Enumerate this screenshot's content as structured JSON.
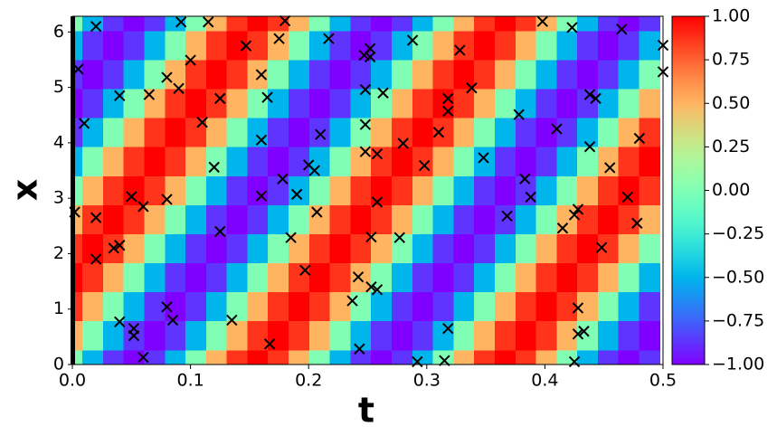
{
  "chart_data": {
    "type": "heatmap",
    "xlabel": "t",
    "ylabel": "x",
    "t": [
      0,
      0.0175,
      0.0349,
      0.0524,
      0.0698,
      0.0873,
      0.1047,
      0.1222,
      0.1396,
      0.1571,
      0.1745,
      0.192,
      0.2094,
      0.2269,
      0.2443,
      0.2618,
      0.2793,
      0.2967,
      0.3142,
      0.3316,
      0.3491,
      0.3665,
      0.384,
      0.4014,
      0.4189,
      0.4363,
      0.4538,
      0.4712,
      0.4887
    ],
    "x": [
      0,
      0.5236,
      1.0472,
      1.5708,
      2.0944,
      2.618,
      3.1416,
      3.6652,
      4.1888,
      4.7124,
      5.236,
      5.7596,
      6.2832
    ],
    "values": [
      [
        0,
        -0.5,
        -0.87,
        -1,
        -0.87,
        -0.5,
        0,
        0.5,
        0.87,
        1,
        0.87,
        0.5,
        0,
        -0.5,
        -0.87,
        -1,
        -0.87,
        -0.5,
        0,
        0.5,
        0.87,
        1,
        0.87,
        0.5,
        0,
        -0.5,
        -0.87,
        -1,
        -0.87
      ],
      [
        0.5,
        0,
        -0.5,
        -0.87,
        -1,
        -0.87,
        -0.5,
        0,
        0.5,
        0.87,
        1,
        0.87,
        0.5,
        0,
        -0.5,
        -0.87,
        -1,
        -0.87,
        -0.5,
        0,
        0.5,
        0.87,
        1,
        0.87,
        0.5,
        0,
        -0.5,
        -0.87,
        -1
      ],
      [
        0.87,
        0.5,
        0,
        -0.5,
        -0.87,
        -1,
        -0.87,
        -0.5,
        0,
        0.5,
        0.87,
        1,
        0.87,
        0.5,
        0,
        -0.5,
        -0.87,
        -1,
        -0.87,
        -0.5,
        0,
        0.5,
        0.87,
        1,
        0.87,
        0.5,
        0,
        -0.5,
        -0.87
      ],
      [
        1,
        0.87,
        0.5,
        0,
        -0.5,
        -0.87,
        -1,
        -0.87,
        -0.5,
        0,
        0.5,
        0.87,
        1,
        0.87,
        0.5,
        0,
        -0.5,
        -0.87,
        -1,
        -0.87,
        -0.5,
        0,
        0.5,
        0.87,
        1,
        0.87,
        0.5,
        0,
        -0.5
      ],
      [
        0.87,
        1,
        0.87,
        0.5,
        0,
        -0.5,
        -0.87,
        -1,
        -0.87,
        -0.5,
        0,
        0.5,
        0.87,
        1,
        0.87,
        0.5,
        0,
        -0.5,
        -0.87,
        -1,
        -0.87,
        -0.5,
        0,
        0.5,
        0.87,
        1,
        0.87,
        0.5,
        0
      ],
      [
        0.5,
        0.87,
        1,
        0.87,
        0.5,
        0,
        -0.5,
        -0.87,
        -1,
        -0.87,
        -0.5,
        0,
        0.5,
        0.87,
        1,
        0.87,
        0.5,
        0,
        -0.5,
        -0.87,
        -1,
        -0.87,
        -0.5,
        0,
        0.5,
        0.87,
        1,
        0.87,
        0.5
      ],
      [
        0,
        0.5,
        0.87,
        1,
        0.87,
        0.5,
        0,
        -0.5,
        -0.87,
        -1,
        -0.87,
        -0.5,
        0,
        0.5,
        0.87,
        1,
        0.87,
        0.5,
        0,
        -0.5,
        -0.87,
        -1,
        -0.87,
        -0.5,
        0,
        0.5,
        0.87,
        1,
        0.87
      ],
      [
        -0.5,
        0,
        0.5,
        0.87,
        1,
        0.87,
        0.5,
        0,
        -0.5,
        -0.87,
        -1,
        -0.87,
        -0.5,
        0,
        0.5,
        0.87,
        1,
        0.87,
        0.5,
        0,
        -0.5,
        -0.87,
        -1,
        -0.87,
        -0.5,
        0,
        0.5,
        0.87,
        1
      ],
      [
        -0.87,
        -0.5,
        0,
        0.5,
        0.87,
        1,
        0.87,
        0.5,
        0,
        -0.5,
        -0.87,
        -1,
        -0.87,
        -0.5,
        0,
        0.5,
        0.87,
        1,
        0.87,
        0.5,
        0,
        -0.5,
        -0.87,
        -1,
        -0.87,
        -0.5,
        0,
        0.5,
        0.87
      ],
      [
        -1,
        -0.87,
        -0.5,
        0,
        0.5,
        0.87,
        1,
        0.87,
        0.5,
        0,
        -0.5,
        -0.87,
        -1,
        -0.87,
        -0.5,
        0,
        0.5,
        0.87,
        1,
        0.87,
        0.5,
        0,
        -0.5,
        -0.87,
        -1,
        -0.87,
        -0.5,
        0,
        0.5
      ],
      [
        -0.87,
        -1,
        -0.87,
        -0.5,
        0,
        0.5,
        0.87,
        1,
        0.87,
        0.5,
        0,
        -0.5,
        -0.87,
        -1,
        -0.87,
        -0.5,
        0,
        0.5,
        0.87,
        1,
        0.87,
        0.5,
        0,
        -0.5,
        -0.87,
        -1,
        -0.87,
        -0.5,
        0
      ],
      [
        -0.5,
        -0.87,
        -1,
        -0.87,
        -0.5,
        0,
        0.5,
        0.87,
        1,
        0.87,
        0.5,
        0,
        -0.5,
        -0.87,
        -1,
        -0.87,
        -0.5,
        0,
        0.5,
        0.87,
        1,
        0.87,
        0.5,
        0,
        -0.5,
        -0.87,
        -1,
        -0.87,
        -0.5
      ],
      [
        0,
        -0.5,
        -0.87,
        -1,
        -0.87,
        -0.5,
        0,
        0.5,
        0.87,
        1,
        0.87,
        0.5,
        0,
        -0.5,
        -0.87,
        -1,
        -0.87,
        -0.5,
        0,
        0.5,
        0.87,
        1,
        0.87,
        0.5,
        0,
        -0.5,
        -0.87,
        -1,
        -0.87
      ]
    ],
    "colormap": "rainbow",
    "clim": [
      -1,
      1
    ],
    "cticks": [
      {
        "value": -1,
        "label": "−1.00"
      },
      {
        "value": -0.75,
        "label": "−0.75"
      },
      {
        "value": -0.5,
        "label": "−0.50"
      },
      {
        "value": -0.25,
        "label": "−0.25"
      },
      {
        "value": 0,
        "label": "0.00"
      },
      {
        "value": 0.25,
        "label": "0.25"
      },
      {
        "value": 0.5,
        "label": "0.50"
      },
      {
        "value": 0.75,
        "label": "0.75"
      },
      {
        "value": 1,
        "label": "1.00"
      }
    ],
    "xlim": [
      0,
      0.5
    ],
    "xticks": [
      {
        "value": 0,
        "label": "0.0"
      },
      0.1,
      0.2,
      0.3,
      0.4,
      0.5
    ],
    "ylim": [
      0,
      6.2832
    ],
    "yticks": [
      0,
      1,
      2,
      3,
      4,
      5,
      6
    ],
    "points": {
      "marker": "x",
      "color": "#000000",
      "t": [
        0.005,
        0.01,
        0.02,
        0.02,
        0.02,
        0.002,
        0.035,
        0.04,
        0.04,
        0.04,
        0.05,
        0.052,
        0.052,
        0.06,
        0.06,
        0.065,
        0.08,
        0.08,
        0.08,
        0.085,
        0.09,
        0.092,
        0.1,
        0.11,
        0.115,
        0.12,
        0.125,
        0.125,
        0.135,
        0.147,
        0.16,
        0.16,
        0.16,
        0.165,
        0.167,
        0.175,
        0.178,
        0.18,
        0.185,
        0.19,
        0.197,
        0.2,
        0.205,
        0.207,
        0.21,
        0.217,
        0.237,
        0.242,
        0.243,
        0.247,
        0.248,
        0.248,
        0.248,
        0.252,
        0.252,
        0.253,
        0.253,
        0.258,
        0.258,
        0.258,
        0.263,
        0.28,
        0.277,
        0.288,
        0.292,
        0.298,
        0.31,
        0.315,
        0.318,
        0.318,
        0.318,
        0.328,
        0.338,
        0.348,
        0.368,
        0.378,
        0.383,
        0.388,
        0.398,
        0.41,
        0.415,
        0.423,
        0.425,
        0.425,
        0.428,
        0.428,
        0.428,
        0.433,
        0.438,
        0.438,
        0.443,
        0.448,
        0.455,
        0.465,
        0.47,
        0.478,
        0.48,
        0.5,
        0.5
      ],
      "x": [
        5.33,
        4.35,
        6.1,
        2.65,
        1.9,
        2.75,
        2.1,
        2.15,
        4.85,
        0.77,
        3.03,
        0.65,
        0.52,
        2.85,
        0.13,
        4.87,
        5.18,
        2.98,
        1.04,
        0.8,
        4.98,
        6.18,
        5.49,
        4.37,
        6.18,
        3.56,
        4.8,
        2.4,
        0.8,
        5.75,
        5.23,
        4.05,
        3.04,
        4.82,
        0.37,
        5.88,
        3.35,
        6.2,
        2.29,
        3.07,
        1.7,
        3.6,
        3.5,
        2.75,
        4.15,
        5.88,
        1.15,
        1.58,
        0.28,
        5.58,
        4.96,
        4.33,
        3.84,
        5.7,
        5.55,
        2.3,
        1.4,
        1.35,
        3.8,
        2.93,
        4.9,
        3.99,
        2.29,
        5.85,
        0.05,
        3.59,
        4.19,
        0.07,
        4.8,
        4.57,
        0.65,
        5.67,
        4.99,
        3.73,
        2.68,
        4.51,
        3.35,
        3.02,
        6.19,
        4.25,
        2.46,
        6.08,
        2.7,
        0.05,
        2.8,
        1.02,
        0.55,
        0.6,
        4.87,
        3.93,
        4.8,
        2.11,
        3.55,
        6.05,
        3.02,
        2.55,
        4.08,
        5.76,
        5.28
      ]
    }
  }
}
